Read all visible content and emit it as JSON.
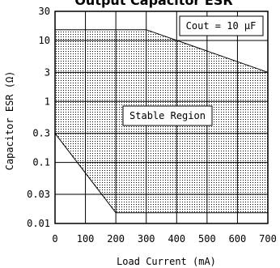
{
  "chart_data": {
    "type": "area",
    "title": "Output Capacitor ESR",
    "xlabel": "Load Current (mA)",
    "ylabel": "Capacitor ESR (Ω)",
    "x_ticks": [
      "0",
      "100",
      "200",
      "300",
      "400",
      "500",
      "600",
      "700"
    ],
    "y_ticks": [
      "30",
      "10",
      "3",
      "1",
      "0.3",
      "0.1",
      "0.03",
      "0.01"
    ],
    "x_range": [
      0,
      700
    ],
    "y_range": [
      0.01,
      30
    ],
    "y_scale": "log",
    "grid": true,
    "region": {
      "label": "Stable Region",
      "points": [
        {
          "x": 0,
          "y": 15
        },
        {
          "x": 300,
          "y": 15
        },
        {
          "x": 700,
          "y": 3
        },
        {
          "x": 700,
          "y": 0.015
        },
        {
          "x": 200,
          "y": 0.015
        },
        {
          "x": 0,
          "y": 0.3
        }
      ]
    },
    "annotation": "Cout = 10 μF"
  }
}
